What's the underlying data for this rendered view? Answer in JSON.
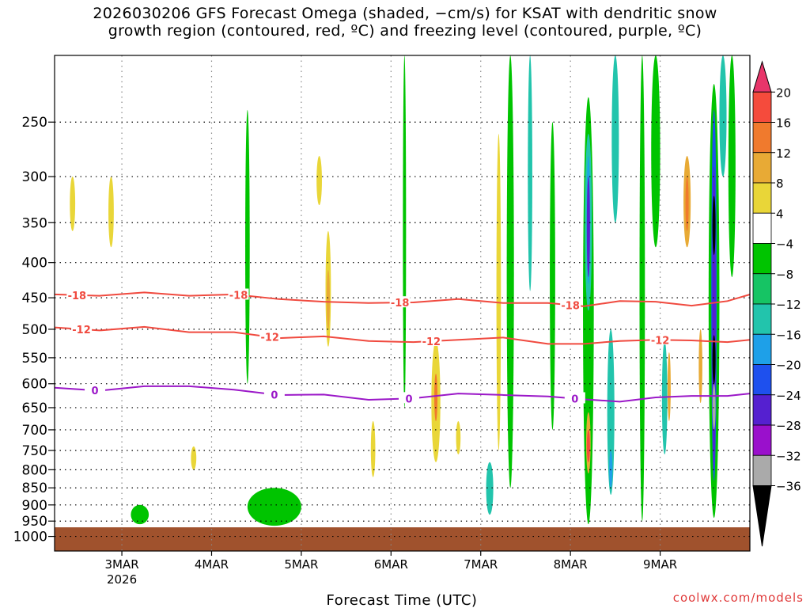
{
  "title": {
    "line1": "2026030206 GFS Forecast Omega (shaded, −cm/s) for KSAT with dendritic snow",
    "line2": "growth region (contoured, red, ºC) and freezing level (contoured, purple, ºC)"
  },
  "credit": "coolwx.com/models",
  "chart_data": {
    "type": "heatmap",
    "title": "2026030206 GFS Forecast Omega (shaded, −cm/s) for KSAT with dendritic snow growth region (contoured, red, ºC) and freezing level (contoured, purple, ºC)",
    "xlabel": "Forecast Time (UTC)",
    "ylabel": "",
    "x_ticks": [
      {
        "t": 0.75,
        "label": "3MAR",
        "sub": "2026"
      },
      {
        "t": 1.75,
        "label": "4MAR",
        "sub": ""
      },
      {
        "t": 2.75,
        "label": "5MAR",
        "sub": ""
      },
      {
        "t": 3.75,
        "label": "6MAR",
        "sub": ""
      },
      {
        "t": 4.75,
        "label": "7MAR",
        "sub": ""
      },
      {
        "t": 5.75,
        "label": "8MAR",
        "sub": ""
      },
      {
        "t": 6.75,
        "label": "9MAR",
        "sub": ""
      }
    ],
    "xlim": [
      0,
      7.75
    ],
    "y_ticks": [
      250,
      300,
      350,
      400,
      450,
      500,
      550,
      600,
      650,
      700,
      750,
      800,
      850,
      900,
      950,
      1000
    ],
    "ylim": [
      1050,
      200
    ],
    "y_scale": "log-pressure",
    "grid": true,
    "ground_pressure": 970,
    "colorbar": {
      "labels": [
        "20",
        "16",
        "12",
        "8",
        "4",
        "−4",
        "−8",
        "−12",
        "−16",
        "−20",
        "−24",
        "−28",
        "−32",
        "−36"
      ],
      "colors": [
        "#e8356a",
        "#f54b3c",
        "#f07a2d",
        "#e8aa35",
        "#e9d638",
        "#ffffff",
        "#00c400",
        "#16c464",
        "#22c4ac",
        "#1ea0e8",
        "#1e50ee",
        "#5520d0",
        "#9a10cc",
        "#aaaaaa",
        "#000000"
      ]
    },
    "omega_features": [
      {
        "t": 0.2,
        "p0": 300,
        "p1": 360,
        "w": 0.06,
        "c": "#e9d638"
      },
      {
        "t": 0.63,
        "p0": 300,
        "p1": 380,
        "w": 0.06,
        "c": "#e9d638"
      },
      {
        "t": 0.95,
        "p0": 900,
        "p1": 960,
        "w": 0.2,
        "c": "#00c400"
      },
      {
        "t": 1.55,
        "p0": 740,
        "p1": 800,
        "w": 0.06,
        "c": "#e9d638"
      },
      {
        "t": 2.15,
        "p0": 240,
        "p1": 600,
        "w": 0.05,
        "c": "#00c400"
      },
      {
        "t": 2.45,
        "p0": 850,
        "p1": 965,
        "w": 0.6,
        "c": "#00c400"
      },
      {
        "t": 2.95,
        "p0": 280,
        "p1": 330,
        "w": 0.06,
        "c": "#e9d638"
      },
      {
        "t": 3.05,
        "p0": 360,
        "p1": 530,
        "w": 0.06,
        "c": "#e9d638"
      },
      {
        "t": 3.05,
        "p0": 410,
        "p1": 500,
        "w": 0.02,
        "c": "#e8aa35"
      },
      {
        "t": 3.55,
        "p0": 680,
        "p1": 820,
        "w": 0.05,
        "c": "#e9d638"
      },
      {
        "t": 3.9,
        "p0": 200,
        "p1": 650,
        "w": 0.03,
        "c": "#00c400"
      },
      {
        "t": 4.25,
        "p0": 520,
        "p1": 780,
        "w": 0.1,
        "c": "#e9d638"
      },
      {
        "t": 4.25,
        "p0": 580,
        "p1": 680,
        "w": 0.03,
        "c": "#f07a2d"
      },
      {
        "t": 4.5,
        "p0": 680,
        "p1": 760,
        "w": 0.05,
        "c": "#e9d638"
      },
      {
        "t": 4.95,
        "p0": 260,
        "p1": 750,
        "w": 0.05,
        "c": "#e9d638"
      },
      {
        "t": 4.85,
        "p0": 780,
        "p1": 930,
        "w": 0.08,
        "c": "#22c4ac"
      },
      {
        "t": 5.08,
        "p0": 200,
        "p1": 850,
        "w": 0.08,
        "c": "#00c400"
      },
      {
        "t": 5.3,
        "p0": 200,
        "p1": 440,
        "w": 0.05,
        "c": "#22c4ac"
      },
      {
        "t": 5.55,
        "p0": 250,
        "p1": 700,
        "w": 0.06,
        "c": "#00c400"
      },
      {
        "t": 5.95,
        "p0": 230,
        "p1": 960,
        "w": 0.12,
        "c": "#00c400"
      },
      {
        "t": 5.95,
        "p0": 260,
        "p1": 470,
        "w": 0.08,
        "c": "#22c4ac"
      },
      {
        "t": 5.95,
        "p0": 280,
        "p1": 430,
        "w": 0.04,
        "c": "#1ea0e8"
      },
      {
        "t": 5.95,
        "p0": 300,
        "p1": 420,
        "w": 0.02,
        "c": "#5520d0"
      },
      {
        "t": 5.95,
        "p0": 660,
        "p1": 810,
        "w": 0.05,
        "c": "#e8aa35"
      },
      {
        "t": 5.95,
        "p0": 700,
        "p1": 780,
        "w": 0.03,
        "c": "#f54b3c"
      },
      {
        "t": 6.2,
        "p0": 500,
        "p1": 870,
        "w": 0.08,
        "c": "#22c4ac"
      },
      {
        "t": 6.2,
        "p0": 750,
        "p1": 850,
        "w": 0.03,
        "c": "#1ea0e8"
      },
      {
        "t": 6.25,
        "p0": 200,
        "p1": 350,
        "w": 0.08,
        "c": "#22c4ac"
      },
      {
        "t": 6.55,
        "p0": 200,
        "p1": 950,
        "w": 0.06,
        "c": "#00c400"
      },
      {
        "t": 6.7,
        "p0": 200,
        "p1": 380,
        "w": 0.1,
        "c": "#00c400"
      },
      {
        "t": 6.8,
        "p0": 520,
        "p1": 760,
        "w": 0.06,
        "c": "#22c4ac"
      },
      {
        "t": 6.85,
        "p0": 540,
        "p1": 680,
        "w": 0.03,
        "c": "#e8aa35"
      },
      {
        "t": 7.05,
        "p0": 280,
        "p1": 380,
        "w": 0.08,
        "c": "#e8aa35"
      },
      {
        "t": 7.05,
        "p0": 300,
        "p1": 360,
        "w": 0.03,
        "c": "#f07a2d"
      },
      {
        "t": 7.2,
        "p0": 500,
        "p1": 640,
        "w": 0.04,
        "c": "#e8aa35"
      },
      {
        "t": 7.35,
        "p0": 220,
        "p1": 940,
        "w": 0.12,
        "c": "#00c400"
      },
      {
        "t": 7.35,
        "p0": 240,
        "p1": 830,
        "w": 0.06,
        "c": "#1e50ee"
      },
      {
        "t": 7.35,
        "p0": 290,
        "p1": 800,
        "w": 0.04,
        "c": "#5520d0"
      },
      {
        "t": 7.35,
        "p0": 320,
        "p1": 390,
        "w": 0.03,
        "c": "#000000"
      },
      {
        "t": 7.35,
        "p0": 510,
        "p1": 600,
        "w": 0.03,
        "c": "#000000"
      },
      {
        "t": 7.35,
        "p0": 600,
        "p1": 700,
        "w": 0.03,
        "c": "#aaaaaa"
      },
      {
        "t": 7.55,
        "p0": 200,
        "p1": 420,
        "w": 0.08,
        "c": "#00c400"
      },
      {
        "t": 7.45,
        "p0": 200,
        "p1": 300,
        "w": 0.08,
        "c": "#22c4ac"
      }
    ],
    "contours": [
      {
        "name": "-18",
        "color": "#f04a3f",
        "labels_t": [
          0.25,
          2.05,
          3.85,
          5.75
        ],
        "t": [
          0.0,
          0.5,
          1.0,
          1.5,
          2.0,
          2.5,
          3.0,
          3.5,
          4.0,
          4.5,
          5.0,
          5.5,
          5.9,
          6.3,
          6.7,
          7.1,
          7.5,
          7.75
        ],
        "p": [
          445,
          447,
          442,
          447,
          445,
          452,
          456,
          458,
          457,
          452,
          458,
          458,
          463,
          455,
          456,
          462,
          455,
          445
        ]
      },
      {
        "name": "-12",
        "color": "#f04a3f",
        "labels_t": [
          0.3,
          2.4,
          4.2,
          6.75
        ],
        "t": [
          0.0,
          0.5,
          1.0,
          1.5,
          2.0,
          2.5,
          3.0,
          3.5,
          4.0,
          4.5,
          5.0,
          5.5,
          5.9,
          6.3,
          6.7,
          7.1,
          7.5,
          7.75
        ],
        "p": [
          497,
          502,
          496,
          505,
          505,
          515,
          512,
          520,
          522,
          518,
          514,
          525,
          525,
          520,
          518,
          519,
          522,
          518
        ]
      },
      {
        "name": "0",
        "color": "#9b18c8",
        "labels_t": [
          0.45,
          2.45,
          3.95,
          5.8
        ],
        "t": [
          0.0,
          0.5,
          1.0,
          1.5,
          2.0,
          2.5,
          3.0,
          3.5,
          4.0,
          4.5,
          5.0,
          5.5,
          5.9,
          6.3,
          6.7,
          7.1,
          7.5,
          7.75
        ],
        "p": [
          608,
          614,
          605,
          605,
          612,
          623,
          622,
          633,
          630,
          620,
          623,
          626,
          632,
          637,
          628,
          625,
          625,
          620
        ]
      }
    ]
  }
}
